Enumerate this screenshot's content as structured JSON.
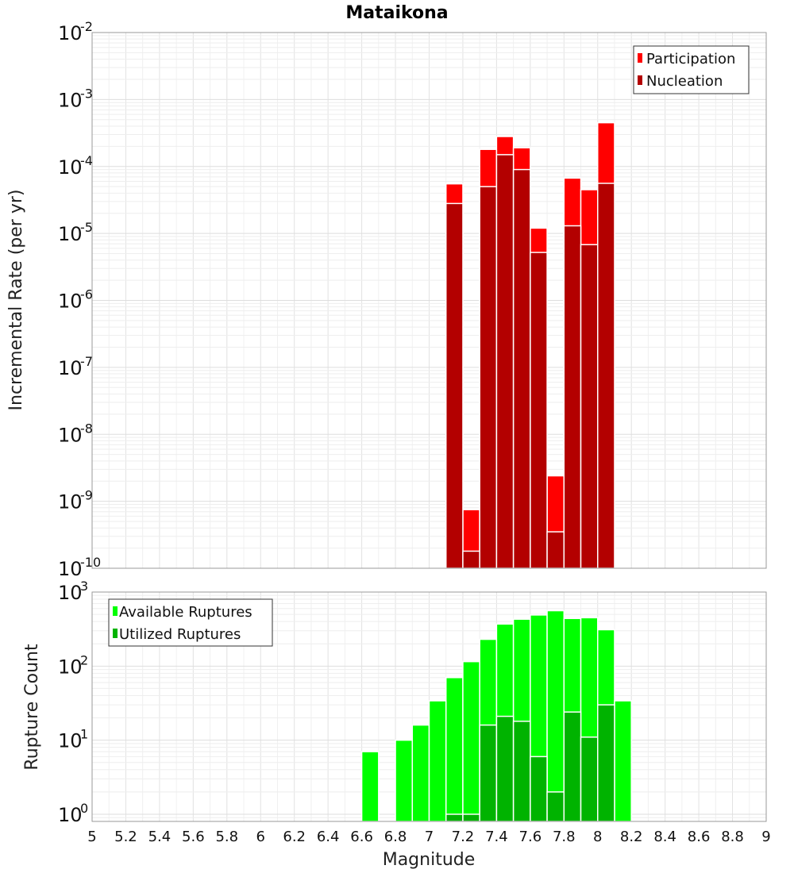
{
  "title": "Mataikona",
  "chart_data": [
    {
      "type": "bar",
      "yscale": "log",
      "ylabel": "Incremental Rate (per yr)",
      "ylim": [
        1e-10,
        0.01
      ],
      "xlim": [
        5,
        9
      ],
      "bar_width": 0.1,
      "grid": true,
      "legend_position": "top-right",
      "yticks": [
        {
          "base": "10",
          "exp": "-2",
          "value": 0.01
        },
        {
          "base": "10",
          "exp": "-3",
          "value": 0.001
        },
        {
          "base": "10",
          "exp": "-4",
          "value": 0.0001
        },
        {
          "base": "10",
          "exp": "-5",
          "value": 1e-05
        },
        {
          "base": "10",
          "exp": "-6",
          "value": 1e-06
        },
        {
          "base": "10",
          "exp": "-7",
          "value": 1e-07
        },
        {
          "base": "10",
          "exp": "-8",
          "value": 1e-08
        },
        {
          "base": "10",
          "exp": "-9",
          "value": 1e-09
        },
        {
          "base": "10",
          "exp": "-10",
          "value": 1e-10
        }
      ],
      "series": [
        {
          "name": "Participation",
          "color": "#ff0000",
          "x": [
            7.15,
            7.25,
            7.35,
            7.45,
            7.55,
            7.65,
            7.75,
            7.85,
            7.95,
            8.05
          ],
          "values": [
            5.5e-05,
            7.5e-10,
            0.00018,
            0.00028,
            0.00019,
            1.2e-05,
            2.4e-09,
            6.7e-05,
            4.5e-05,
            0.00045
          ]
        },
        {
          "name": "Nucleation",
          "color": "#b30000",
          "x": [
            7.15,
            7.25,
            7.35,
            7.45,
            7.55,
            7.65,
            7.75,
            7.85,
            7.95,
            8.05
          ],
          "values": [
            2.8e-05,
            1.8e-10,
            5e-05,
            0.00015,
            9e-05,
            5.2e-06,
            3.5e-10,
            1.3e-05,
            6.8e-06,
            5.6e-05
          ]
        }
      ]
    },
    {
      "type": "bar",
      "yscale": "log",
      "ylabel": "Rupture Count",
      "xlabel": "Magnitude",
      "ylim": [
        0.8,
        1000
      ],
      "xlim": [
        5,
        9
      ],
      "bar_width": 0.1,
      "grid": true,
      "legend_position": "top-left",
      "yticks": [
        {
          "base": "10",
          "exp": "3",
          "value": 1000
        },
        {
          "base": "10",
          "exp": "2",
          "value": 100
        },
        {
          "base": "10",
          "exp": "1",
          "value": 10
        },
        {
          "base": "10",
          "exp": "0",
          "value": 1
        }
      ],
      "xticks": [
        "5",
        "5.2",
        "5.4",
        "5.6",
        "5.8",
        "6",
        "6.2",
        "6.4",
        "6.6",
        "6.8",
        "7",
        "7.2",
        "7.4",
        "7.6",
        "7.8",
        "8",
        "8.2",
        "8.4",
        "8.6",
        "8.8",
        "9"
      ],
      "series": [
        {
          "name": "Available Ruptures",
          "color": "#00ff00",
          "x": [
            6.65,
            6.85,
            6.95,
            7.05,
            7.15,
            7.25,
            7.35,
            7.45,
            7.55,
            7.65,
            7.75,
            7.85,
            7.95,
            8.05,
            8.15
          ],
          "values": [
            7,
            10,
            16,
            34,
            70,
            115,
            230,
            370,
            430,
            490,
            560,
            440,
            450,
            310,
            34
          ]
        },
        {
          "name": "Utilized Ruptures",
          "color": "#00b300",
          "x": [
            7.15,
            7.25,
            7.35,
            7.45,
            7.55,
            7.65,
            7.75,
            7.85,
            7.95,
            8.05
          ],
          "values": [
            1,
            1,
            16,
            21,
            18,
            6,
            2,
            24,
            11,
            30
          ]
        }
      ]
    }
  ]
}
